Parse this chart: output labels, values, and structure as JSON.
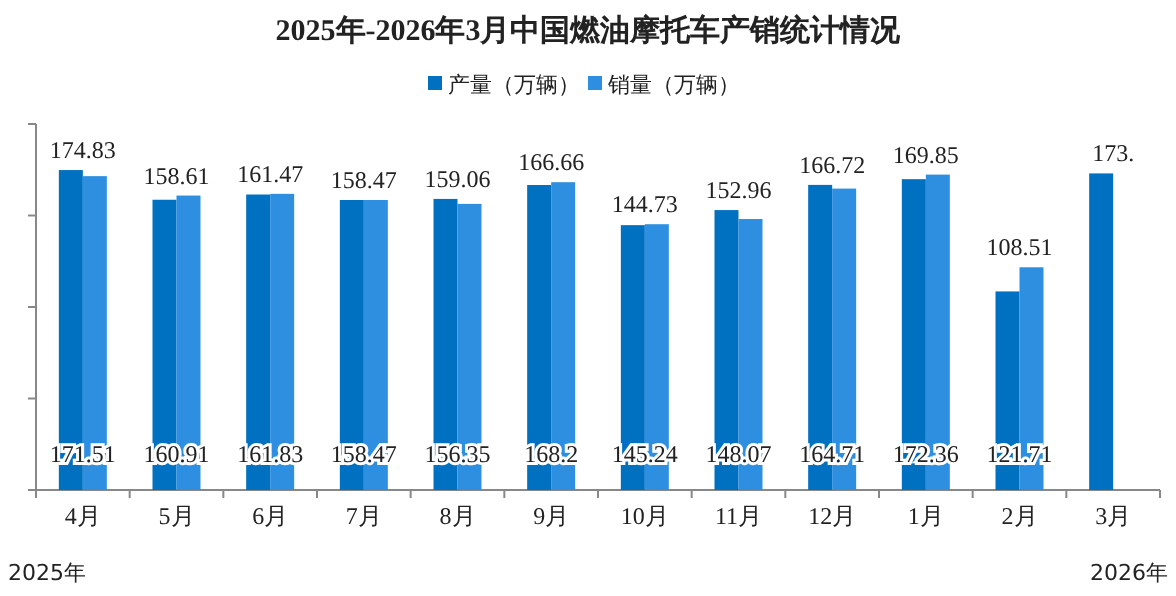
{
  "chart_data": {
    "type": "bar",
    "title": "2025年-2026年3月中国燃油摩托车产销统计情况",
    "categories": [
      "4月",
      "5月",
      "6月",
      "7月",
      "8月",
      "9月",
      "10月",
      "11月",
      "12月",
      "1月",
      "2月",
      "3月"
    ],
    "series": [
      {
        "name": "产量（万辆）",
        "color": "#0070c0",
        "values": [
          174.83,
          158.61,
          161.47,
          158.47,
          159.06,
          166.66,
          144.73,
          152.96,
          166.72,
          169.85,
          108.51,
          173
        ],
        "value_labels": [
          "174.83",
          "158.61",
          "161.47",
          "158.47",
          "159.06",
          "166.66",
          "144.73",
          "152.96",
          "166.72",
          "169.85",
          "108.51",
          "173."
        ]
      },
      {
        "name": "销量（万辆）",
        "color": "#2e8fe0",
        "values": [
          171.51,
          160.91,
          161.83,
          158.47,
          156.35,
          168.2,
          145.24,
          148.07,
          164.71,
          172.36,
          121.71,
          null
        ],
        "value_labels": [
          "171.51",
          "160.91",
          "161.83",
          "158.47",
          "156.35",
          "168.2",
          "145.24",
          "148.07",
          "164.71",
          "172.36",
          "121.71",
          null
        ]
      }
    ],
    "ylim": [
      0,
      200
    ],
    "yticks": [
      {
        "value": 0,
        "label": null
      },
      {
        "value": 50,
        "label": null
      },
      {
        "value": 100,
        "label": null
      },
      {
        "value": 150,
        "label": null
      },
      {
        "value": 200,
        "label": null
      }
    ],
    "tick_labels": "x",
    "grid": false,
    "legend": "top",
    "annotations": [
      "2025年",
      "2026年"
    ]
  }
}
